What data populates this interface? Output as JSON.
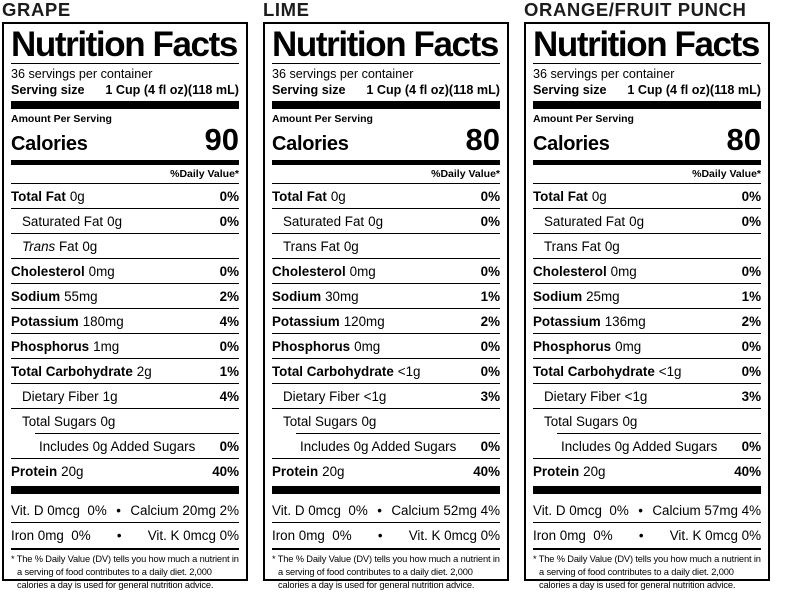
{
  "page": {
    "background": "#ffffff",
    "text_color": "#000000"
  },
  "labels": [
    {
      "flavor": "GRAPE",
      "title": "Nutrition Facts",
      "servings_per_container": "36 servings per container",
      "serving_size_label": "Serving size",
      "serving_size_value": "1 Cup (4 fl oz)(118 mL)",
      "amount_per_serving": "Amount Per Serving",
      "calories_label": "Calories",
      "calories_value": "90",
      "daily_value_header": "%Daily Value*",
      "rows": [
        {
          "name": "Total Fat",
          "qty": "0g",
          "dv": "0%",
          "bold": true,
          "indent": 0
        },
        {
          "name": "Saturated Fat",
          "qty": "0g",
          "dv": "0%",
          "bold": false,
          "indent": 1
        },
        {
          "name": "Trans Fat",
          "qty": "0g",
          "dv": "",
          "bold": false,
          "indent": 1,
          "italic_first": true
        },
        {
          "name": "Cholesterol",
          "qty": "0mg",
          "dv": "0%",
          "bold": true,
          "indent": 0
        },
        {
          "name": "Sodium",
          "qty": "55mg",
          "dv": "2%",
          "bold": true,
          "indent": 0
        },
        {
          "name": "Potassium",
          "qty": "180mg",
          "dv": "4%",
          "bold": true,
          "indent": 0
        },
        {
          "name": "Phosphorus",
          "qty": "1mg",
          "dv": "0%",
          "bold": true,
          "indent": 0
        },
        {
          "name": "Total Carbohydrate",
          "qty": "2g",
          "dv": "1%",
          "bold": true,
          "indent": 0
        },
        {
          "name": "Dietary Fiber",
          "qty": "1g",
          "dv": "4%",
          "bold": false,
          "indent": 1
        },
        {
          "name": "Total Sugars",
          "qty": "0g",
          "dv": "",
          "bold": false,
          "indent": 1
        },
        {
          "name": "Includes 0g Added Sugars",
          "qty": "",
          "dv": "0%",
          "bold": false,
          "indent": 2,
          "sep_indent": true
        },
        {
          "name": "Protein",
          "qty": "20g",
          "dv": "40%",
          "bold": true,
          "indent": 0
        }
      ],
      "micros": [
        {
          "left": "Vit. D 0mcg  0%",
          "bullet": "•",
          "right": "Calcium 20mg 2%"
        },
        {
          "left": "Iron 0mg  0%",
          "bullet": "•",
          "right": "Vit. K 0mcg 0%"
        }
      ],
      "footnote": "* The % Daily Value (DV) tells you how much a nutrient in a serving of food contributes to a daily diet. 2,000 calories a day is used for general nutrition advice."
    },
    {
      "flavor": "LIME",
      "title": "Nutrition Facts",
      "servings_per_container": "36 servings per container",
      "serving_size_label": "Serving size",
      "serving_size_value": "1 Cup (4 fl oz)(118 mL)",
      "amount_per_serving": "Amount Per Serving",
      "calories_label": "Calories",
      "calories_value": "80",
      "daily_value_header": "%Daily Value*",
      "rows": [
        {
          "name": "Total Fat",
          "qty": "0g",
          "dv": "0%",
          "bold": true,
          "indent": 0
        },
        {
          "name": "Saturated Fat",
          "qty": "0g",
          "dv": "0%",
          "bold": false,
          "indent": 1
        },
        {
          "name": "Trans Fat",
          "qty": "0g",
          "dv": "",
          "bold": false,
          "indent": 1
        },
        {
          "name": "Cholesterol",
          "qty": "0mg",
          "dv": "0%",
          "bold": true,
          "indent": 0
        },
        {
          "name": "Sodium",
          "qty": "30mg",
          "dv": "1%",
          "bold": true,
          "indent": 0
        },
        {
          "name": "Potassium",
          "qty": "120mg",
          "dv": "2%",
          "bold": true,
          "indent": 0
        },
        {
          "name": "Phosphorus",
          "qty": "0mg",
          "dv": "0%",
          "bold": true,
          "indent": 0
        },
        {
          "name": "Total Carbohydrate",
          "qty": "<1g",
          "dv": "0%",
          "bold": true,
          "indent": 0
        },
        {
          "name": "Dietary Fiber",
          "qty": "<1g",
          "dv": "3%",
          "bold": false,
          "indent": 1
        },
        {
          "name": "Total Sugars",
          "qty": "0g",
          "dv": "",
          "bold": false,
          "indent": 1
        },
        {
          "name": "Includes 0g Added Sugars",
          "qty": "",
          "dv": "0%",
          "bold": false,
          "indent": 2,
          "sep_indent": true
        },
        {
          "name": "Protein",
          "qty": "20g",
          "dv": "40%",
          "bold": true,
          "indent": 0
        }
      ],
      "micros": [
        {
          "left": "Vit. D 0mcg  0%",
          "bullet": "•",
          "right": "Calcium 52mg 4%"
        },
        {
          "left": "Iron 0mg  0%",
          "bullet": "•",
          "right": "Vit. K 0mcg 0%"
        }
      ],
      "footnote": "* The % Daily Value (DV) tells you how much a nutrient in a serving of food contributes to a daily diet. 2,000 calories a day is used for general nutrition advice."
    },
    {
      "flavor": "ORANGE/FRUIT PUNCH",
      "title": "Nutrition Facts",
      "servings_per_container": "36 servings per container",
      "serving_size_label": "Serving size",
      "serving_size_value": "1 Cup (4 fl oz)(118 mL)",
      "amount_per_serving": "Amount Per Serving",
      "calories_label": "Calories",
      "calories_value": "80",
      "daily_value_header": "%Daily Value*",
      "rows": [
        {
          "name": "Total Fat",
          "qty": "0g",
          "dv": "0%",
          "bold": true,
          "indent": 0
        },
        {
          "name": "Saturated Fat",
          "qty": "0g",
          "dv": "0%",
          "bold": false,
          "indent": 1
        },
        {
          "name": "Trans Fat",
          "qty": "0g",
          "dv": "",
          "bold": false,
          "indent": 1
        },
        {
          "name": "Cholesterol",
          "qty": "0mg",
          "dv": "0%",
          "bold": true,
          "indent": 0
        },
        {
          "name": "Sodium",
          "qty": "25mg",
          "dv": "1%",
          "bold": true,
          "indent": 0
        },
        {
          "name": "Potassium",
          "qty": "136mg",
          "dv": "2%",
          "bold": true,
          "indent": 0
        },
        {
          "name": "Phosphorus",
          "qty": "0mg",
          "dv": "0%",
          "bold": true,
          "indent": 0
        },
        {
          "name": "Total Carbohydrate",
          "qty": "<1g",
          "dv": "0%",
          "bold": true,
          "indent": 0
        },
        {
          "name": "Dietary Fiber",
          "qty": "<1g",
          "dv": "3%",
          "bold": false,
          "indent": 1
        },
        {
          "name": "Total Sugars",
          "qty": "0g",
          "dv": "",
          "bold": false,
          "indent": 1
        },
        {
          "name": "Includes 0g Added Sugars",
          "qty": "",
          "dv": "0%",
          "bold": false,
          "indent": 2,
          "sep_indent": true
        },
        {
          "name": "Protein",
          "qty": "20g",
          "dv": "40%",
          "bold": true,
          "indent": 0
        }
      ],
      "micros": [
        {
          "left": "Vit. D 0mcg  0%",
          "bullet": "•",
          "right": "Calcium 57mg 4%"
        },
        {
          "left": "Iron 0mg  0%",
          "bullet": "•",
          "right": "Vit. K 0mcg 0%"
        }
      ],
      "footnote": "* The % Daily Value (DV) tells you how much a nutrient in a serving of food contributes to a daily diet. 2,000 calories a day is used for general nutrition advice."
    }
  ]
}
